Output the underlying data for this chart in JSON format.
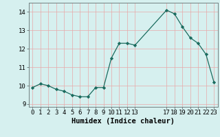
{
  "x": [
    0,
    1,
    2,
    3,
    4,
    5,
    6,
    7,
    8,
    9,
    10,
    11,
    12,
    13,
    17,
    18,
    19,
    20,
    21,
    22,
    23
  ],
  "y": [
    9.9,
    10.1,
    10.0,
    9.8,
    9.7,
    9.5,
    9.4,
    9.4,
    9.9,
    9.9,
    11.5,
    12.3,
    12.3,
    12.2,
    14.1,
    13.9,
    13.2,
    12.6,
    12.3,
    11.7,
    10.2
  ],
  "xlim": [
    -0.5,
    23.5
  ],
  "ylim": [
    8.85,
    14.5
  ],
  "yticks": [
    9,
    10,
    11,
    12,
    13,
    14
  ],
  "xticks": [
    0,
    1,
    2,
    3,
    4,
    5,
    6,
    7,
    8,
    9,
    10,
    11,
    12,
    13,
    17,
    18,
    19,
    20,
    21,
    22,
    23
  ],
  "xlabel": "Humidex (Indice chaleur)",
  "line_color": "#1a6b5e",
  "marker_color": "#1a6b5e",
  "bg_color": "#d6f0ef",
  "grid_color": "#e8a8a8",
  "xlabel_fontsize": 7.5,
  "tick_fontsize": 6.5
}
